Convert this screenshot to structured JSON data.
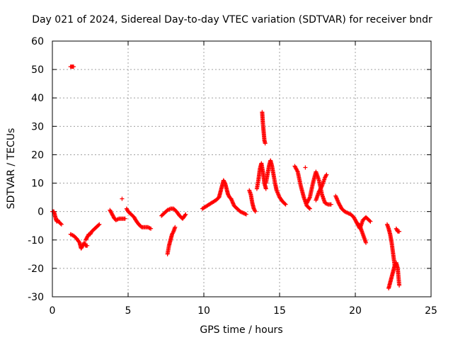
{
  "chart_data": {
    "type": "scatter",
    "title": "Day 021 of 2024, Sidereal Day-to-day VTEC variation (SDTVAR) for receiver bndr",
    "xlabel": "GPS time / hours",
    "ylabel": "SDTVAR / TECUs",
    "xlim": [
      0,
      25
    ],
    "ylim": [
      -30,
      60
    ],
    "xticks": [
      "0",
      "5",
      "10",
      "15",
      "20",
      "25"
    ],
    "yticks": [
      "-30",
      "-20",
      "-10",
      "0",
      "10",
      "20",
      "30",
      "40",
      "50",
      "60"
    ],
    "marker": "+",
    "color": "#ff0000",
    "grid": true,
    "segments": [
      {
        "x": [
          0.0,
          0.1,
          0.15,
          0.2,
          0.25,
          0.3,
          0.35,
          0.4,
          0.5,
          0.6
        ],
        "y": [
          0,
          0,
          -1,
          -2,
          -3,
          -3.5,
          -3,
          -3.5,
          -4,
          -4.5
        ]
      },
      {
        "x": [
          1.2,
          1.3,
          1.4
        ],
        "y": [
          51,
          51,
          51
        ]
      },
      {
        "x": [
          1.2,
          1.4,
          1.6,
          1.8,
          1.9,
          2.0,
          2.1,
          2.2,
          2.3
        ],
        "y": [
          -8,
          -8.5,
          -9.5,
          -11,
          -13,
          -12,
          -11,
          -12,
          -12
        ]
      },
      {
        "x": [
          2.2,
          2.3,
          2.4,
          2.5,
          2.6,
          2.8,
          3.0,
          3.1
        ],
        "y": [
          -10,
          -9,
          -8,
          -8,
          -7,
          -6,
          -5,
          -4.5
        ]
      },
      {
        "x": [
          3.8,
          3.9,
          4.0,
          4.1,
          4.2,
          4.4,
          4.6,
          4.8
        ],
        "y": [
          0.5,
          -0.5,
          -1.5,
          -2.5,
          -3,
          -2.5,
          -2.5,
          -2.5
        ]
      },
      {
        "x": [
          4.6
        ],
        "y": [
          4.5
        ]
      },
      {
        "x": [
          4.9,
          5.0,
          5.2,
          5.4,
          5.5,
          5.7,
          5.9,
          6.1,
          6.3,
          6.5
        ],
        "y": [
          1,
          0,
          -1,
          -2,
          -3,
          -4.5,
          -5.5,
          -5.5,
          -5.5,
          -6
        ]
      },
      {
        "x": [
          7.6,
          7.7,
          7.8,
          7.9,
          8.0,
          8.1
        ],
        "y": [
          -15,
          -12,
          -10,
          -8,
          -7,
          -5.5
        ]
      },
      {
        "x": [
          7.2,
          7.4,
          7.6,
          7.8,
          8.0,
          8.2,
          8.4,
          8.6,
          8.8
        ],
        "y": [
          -1.5,
          -0.5,
          0.5,
          1,
          1,
          0,
          -1.5,
          -2.5,
          -1
        ]
      },
      {
        "x": [
          9.9,
          10.2,
          10.5,
          10.8,
          11.0,
          11.1,
          11.2,
          11.3,
          11.4,
          11.5,
          11.6,
          11.7,
          11.8
        ],
        "y": [
          1,
          2,
          3,
          4,
          5,
          7,
          9,
          11,
          10,
          8,
          6,
          5,
          4.5
        ]
      },
      {
        "x": [
          11.8,
          12.0,
          12.2,
          12.4,
          12.6,
          12.8
        ],
        "y": [
          4.5,
          2,
          1,
          0,
          -0.5,
          -1
        ]
      },
      {
        "x": [
          13.0,
          13.1,
          13.2,
          13.3,
          13.4
        ],
        "y": [
          7.5,
          6,
          3,
          1,
          0
        ]
      },
      {
        "x": [
          13.5,
          13.6,
          13.7,
          13.8,
          13.9,
          14.0,
          14.1
        ],
        "y": [
          8,
          11,
          15,
          17,
          14,
          10,
          8
        ]
      },
      {
        "x": [
          13.85,
          13.9,
          13.95,
          14.0,
          14.05
        ],
        "y": [
          35,
          31,
          28,
          25,
          24
        ]
      },
      {
        "x": [
          14.1,
          14.2,
          14.3,
          14.4,
          14.5,
          14.6,
          14.7,
          14.8,
          15.0,
          15.2,
          15.4
        ],
        "y": [
          10,
          13,
          16,
          18,
          16,
          13,
          10,
          7.5,
          5,
          3.5,
          2.5
        ]
      },
      {
        "x": [
          16.0,
          16.2,
          16.4,
          16.6,
          16.8,
          17.0
        ],
        "y": [
          16,
          14,
          9,
          5,
          2,
          1
        ]
      },
      {
        "x": [
          16.7
        ],
        "y": [
          15.5
        ]
      },
      {
        "x": [
          16.8,
          17.0,
          17.2,
          17.4,
          17.6,
          17.8,
          18.0,
          18.2,
          18.4
        ],
        "y": [
          3,
          5,
          10,
          14,
          11,
          6,
          3,
          2.5,
          2.5
        ]
      },
      {
        "x": [
          17.4,
          17.6,
          17.8,
          18.0,
          18.1
        ],
        "y": [
          4,
          7,
          9,
          12,
          13
        ]
      },
      {
        "x": [
          18.7,
          18.9,
          19.1,
          19.3,
          19.5,
          19.7,
          19.9,
          20.1,
          20.3,
          20.5,
          20.7,
          20.9,
          21.0
        ],
        "y": [
          5.5,
          3,
          1,
          0,
          -0.5,
          -1,
          -2,
          -4,
          -6,
          -3,
          -2,
          -3,
          -3.5
        ]
      },
      {
        "x": [
          20.1,
          20.3,
          20.5,
          20.7
        ],
        "y": [
          -4,
          -5,
          -8,
          -11
        ]
      },
      {
        "x": [
          22.1,
          22.2,
          22.3,
          22.4,
          22.5,
          22.6
        ],
        "y": [
          -4.5,
          -6,
          -8,
          -11,
          -15,
          -19
        ]
      },
      {
        "x": [
          22.2,
          22.3,
          22.4,
          22.5,
          22.6,
          22.7,
          22.8,
          22.9
        ],
        "y": [
          -27,
          -25,
          -23,
          -21,
          -19,
          -18,
          -20,
          -26
        ]
      },
      {
        "x": [
          22.7,
          22.8,
          22.9
        ],
        "y": [
          -6,
          -7,
          -7
        ]
      }
    ]
  }
}
